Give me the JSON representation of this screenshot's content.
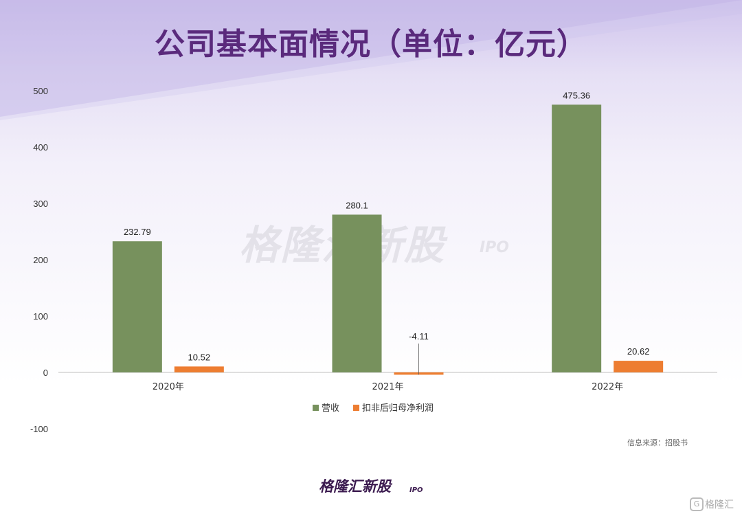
{
  "title": "公司基本面情况（单位：亿元）",
  "source": "信息来源：招股书",
  "watermark": {
    "main": "格隆汇新股",
    "sub": "IPO"
  },
  "logo": {
    "main": "格隆汇新股",
    "sub": "IPO"
  },
  "corner": {
    "icon": "G",
    "text": "格隆汇"
  },
  "colors": {
    "revenue": "#77915d",
    "profit": "#ed7d31",
    "title": "#5a2a7c"
  },
  "chart_data": {
    "type": "bar",
    "title": "公司基本面情况（单位：亿元）",
    "categories": [
      "2020年",
      "2021年",
      "2022年"
    ],
    "series": [
      {
        "name": "营收",
        "values": [
          232.79,
          280.1,
          475.36
        ],
        "color": "#77915d"
      },
      {
        "name": "扣非后归母净利润",
        "values": [
          10.52,
          -4.11,
          20.62
        ],
        "color": "#ed7d31"
      }
    ],
    "data_labels": [
      [
        "232.79",
        "280.1",
        "475.36"
      ],
      [
        "10.52",
        "-4.11",
        "20.62"
      ]
    ],
    "ylim": [
      -100,
      500
    ],
    "yticks": [
      500,
      400,
      300,
      200,
      100,
      0,
      -100
    ],
    "legend_position": "bottom-center",
    "grid": false
  }
}
